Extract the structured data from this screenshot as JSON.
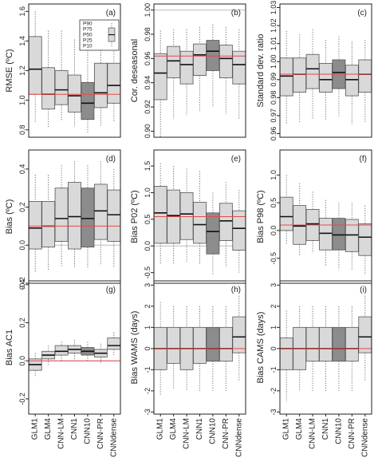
{
  "models": [
    "GLM1",
    "GLM4",
    "CNN-LM",
    "CNN1",
    "CNN10",
    "CNN-PR",
    "CNNdense"
  ],
  "box_fill": "#d9d9d9",
  "highlight_fill": "#8c8c8c",
  "ref_line_color": "#e8494a",
  "zero_line_color": "#bdbdbd",
  "legend_labels": [
    "P90",
    "P75",
    "P50",
    "P25",
    "P10"
  ],
  "chart_data": [
    {
      "type": "boxplot",
      "panel": "(a)",
      "ylabel": "RMSE (ºC)",
      "ylim": [
        0.75,
        1.65
      ],
      "yticks": [
        0.8,
        1.0,
        1.2,
        1.4,
        1.6
      ],
      "ytick_labels": [
        "0.8",
        "1.0",
        "1.2",
        "1.4",
        "1.6"
      ],
      "reference_line": 1.04,
      "highlight": "CNN10",
      "legend": "top-right",
      "boxes": [
        {
          "p10": 0.85,
          "p25": 1.04,
          "p50": 1.21,
          "p75": 1.43,
          "p90": 1.6
        },
        {
          "p10": 0.82,
          "p25": 0.94,
          "p50": 1.04,
          "p75": 1.22,
          "p90": 1.47
        },
        {
          "p10": 0.86,
          "p25": 0.97,
          "p50": 1.07,
          "p75": 1.2,
          "p90": 1.47
        },
        {
          "p10": 0.82,
          "p25": 0.92,
          "p50": 1.03,
          "p75": 1.17,
          "p90": 1.41
        },
        {
          "p10": 0.78,
          "p25": 0.87,
          "p50": 0.98,
          "p75": 1.12,
          "p90": 1.34
        },
        {
          "p10": 0.83,
          "p25": 0.95,
          "p50": 1.05,
          "p75": 1.25,
          "p90": 1.42
        },
        {
          "p10": 0.85,
          "p25": 0.98,
          "p50": 1.1,
          "p75": 1.25,
          "p90": 1.46
        }
      ]
    },
    {
      "type": "boxplot",
      "panel": "(b)",
      "ylabel": "Cor. deseasonal",
      "ylim": [
        0.895,
        1.005
      ],
      "yticks": [
        0.9,
        0.92,
        0.94,
        0.96,
        0.98,
        1.0
      ],
      "ytick_labels": [
        "0.90",
        "0.92",
        "0.94",
        "0.96",
        "0.98",
        "1.00"
      ],
      "reference_line": 0.962,
      "highlight": "CNN10",
      "top_line": 1.0,
      "boxes": [
        {
          "p10": 0.895,
          "p25": 0.926,
          "p50": 0.948,
          "p75": 0.964,
          "p90": 0.983
        },
        {
          "p10": 0.91,
          "p25": 0.944,
          "p50": 0.958,
          "p75": 0.97,
          "p90": 0.984
        },
        {
          "p10": 0.913,
          "p25": 0.939,
          "p50": 0.955,
          "p75": 0.966,
          "p90": 0.984
        },
        {
          "p10": 0.916,
          "p25": 0.946,
          "p50": 0.963,
          "p75": 0.972,
          "p90": 0.986
        },
        {
          "p10": 0.92,
          "p25": 0.95,
          "p50": 0.966,
          "p75": 0.975,
          "p90": 0.988
        },
        {
          "p10": 0.914,
          "p25": 0.944,
          "p50": 0.96,
          "p75": 0.971,
          "p90": 0.986
        },
        {
          "p10": 0.91,
          "p25": 0.939,
          "p50": 0.955,
          "p75": 0.966,
          "p90": 0.984
        }
      ]
    },
    {
      "type": "boxplot",
      "panel": "(c)",
      "ylabel": "Standard dev. ratio",
      "ylim": [
        0.958,
        1.032
      ],
      "yticks": [
        0.96,
        0.97,
        0.98,
        0.99,
        1.0,
        1.01,
        1.02,
        1.03
      ],
      "ytick_labels": [
        "0.96",
        "0.97",
        "0.98",
        "0.99",
        "1.00",
        "1.01",
        "1.02",
        "1.03"
      ],
      "reference_line": 0.993,
      "highlight": "CNN10",
      "boxes": [
        {
          "p10": 0.965,
          "p25": 0.981,
          "p50": 0.992,
          "p75": 1.002,
          "p90": 1.017
        },
        {
          "p10": 0.966,
          "p25": 0.983,
          "p50": 0.993,
          "p75": 1.002,
          "p90": 1.015
        },
        {
          "p10": 0.968,
          "p25": 0.985,
          "p50": 0.996,
          "p75": 1.004,
          "p90": 1.018
        },
        {
          "p10": 0.967,
          "p25": 0.983,
          "p50": 0.99,
          "p75": 0.999,
          "p90": 1.012
        },
        {
          "p10": 0.969,
          "p25": 0.985,
          "p50": 0.994,
          "p75": 1.001,
          "p90": 1.014
        },
        {
          "p10": 0.965,
          "p25": 0.981,
          "p50": 0.99,
          "p75": 0.998,
          "p90": 1.011
        },
        {
          "p10": 0.966,
          "p25": 0.983,
          "p50": 0.993,
          "p75": 1.001,
          "p90": 1.012
        }
      ]
    },
    {
      "type": "boxplot",
      "panel": "(d)",
      "ylabel": "Bias (ºC)",
      "ylim": [
        -0.2,
        0.5
      ],
      "yticks": [
        -0.2,
        0.0,
        0.2,
        0.4
      ],
      "ytick_labels": [
        "-0.2",
        "0.0",
        "0.2",
        "0.4"
      ],
      "reference_line": 0.1,
      "highlight": "CNN10",
      "zero_line": 0.0,
      "boxes": [
        {
          "p10": -0.14,
          "p25": -0.02,
          "p50": 0.09,
          "p75": 0.23,
          "p90": 0.37
        },
        {
          "p10": -0.13,
          "p25": -0.01,
          "p50": 0.1,
          "p75": 0.23,
          "p90": 0.37
        },
        {
          "p10": -0.11,
          "p25": 0.02,
          "p50": 0.14,
          "p75": 0.3,
          "p90": 0.42
        },
        {
          "p10": -0.12,
          "p25": -0.02,
          "p50": 0.15,
          "p75": 0.33,
          "p90": 0.44
        },
        {
          "p10": -0.12,
          "p25": -0.01,
          "p50": 0.14,
          "p75": 0.3,
          "p90": 0.42
        },
        {
          "p10": -0.1,
          "p25": 0.03,
          "p50": 0.18,
          "p75": 0.32,
          "p90": 0.44
        },
        {
          "p10": -0.12,
          "p25": 0.02,
          "p50": 0.16,
          "p75": 0.29,
          "p90": 0.4
        }
      ]
    },
    {
      "type": "boxplot",
      "panel": "(e)",
      "ylabel": "Bias P02 (ºC)",
      "ylim": [
        -0.7,
        1.8
      ],
      "yticks": [
        -0.5,
        0.0,
        0.5,
        1.0,
        1.5
      ],
      "ytick_labels": [
        "-0.5",
        "0.0",
        "0.5",
        "1.0",
        "1.5"
      ],
      "reference_line": 0.55,
      "highlight": "CNN10",
      "zero_line": 0.0,
      "boxes": [
        {
          "p10": -0.35,
          "p25": 0.05,
          "p50": 0.62,
          "p75": 1.12,
          "p90": 1.55
        },
        {
          "p10": -0.35,
          "p25": 0.05,
          "p50": 0.57,
          "p75": 1.05,
          "p90": 1.5
        },
        {
          "p10": -0.3,
          "p25": 0.12,
          "p50": 0.6,
          "p75": 1.0,
          "p90": 1.45
        },
        {
          "p10": -0.35,
          "p25": 0.05,
          "p50": 0.4,
          "p75": 0.82,
          "p90": 1.4
        },
        {
          "p10": -0.55,
          "p25": -0.15,
          "p50": 0.27,
          "p75": 0.62,
          "p90": 1.0
        },
        {
          "p10": -0.4,
          "p25": 0.1,
          "p50": 0.47,
          "p75": 0.8,
          "p90": 1.2
        },
        {
          "p10": -0.5,
          "p25": -0.08,
          "p50": 0.33,
          "p75": 0.66,
          "p90": 1.05
        }
      ]
    },
    {
      "type": "boxplot",
      "panel": "(f)",
      "ylabel": "Bias P98 (ºC)",
      "ylim": [
        -0.95,
        1.45
      ],
      "yticks": [
        -0.5,
        0.0,
        0.5,
        1.0
      ],
      "ytick_labels": [
        "-0.5",
        "0.0",
        "0.5",
        "1.0"
      ],
      "reference_line": 0.1,
      "highlight": "CNN10",
      "zero_line": 0.0,
      "boxes": [
        {
          "p10": -0.25,
          "p25": 0.0,
          "p50": 0.25,
          "p75": 0.6,
          "p90": 1.0
        },
        {
          "p10": -0.45,
          "p25": -0.25,
          "p50": 0.08,
          "p75": 0.45,
          "p90": 0.85
        },
        {
          "p10": -0.4,
          "p25": -0.18,
          "p50": 0.12,
          "p75": 0.38,
          "p90": 0.7
        },
        {
          "p10": -0.65,
          "p25": -0.35,
          "p50": -0.05,
          "p75": 0.22,
          "p90": 0.55
        },
        {
          "p10": -0.7,
          "p25": -0.35,
          "p50": -0.08,
          "p75": 0.22,
          "p90": 0.5
        },
        {
          "p10": -0.7,
          "p25": -0.38,
          "p50": -0.08,
          "p75": 0.2,
          "p90": 0.5
        },
        {
          "p10": -0.8,
          "p25": -0.45,
          "p50": -0.12,
          "p75": 0.12,
          "p90": 0.45
        }
      ]
    },
    {
      "type": "boxplot",
      "panel": "(g)",
      "ylabel": "Bias AC1",
      "ylim": [
        -0.28,
        0.42
      ],
      "yticks": [
        -0.2,
        0.0,
        0.2,
        0.4
      ],
      "ytick_labels": [
        "-0.2",
        "0.0",
        "0.2",
        "0.4"
      ],
      "reference_line": 0.0,
      "highlight": "CNN10",
      "zero_line": 0.0,
      "boxes": [
        {
          "p10": -0.08,
          "p25": -0.05,
          "p50": -0.02,
          "p75": 0.01,
          "p90": 0.04
        },
        {
          "p10": -0.02,
          "p25": 0.01,
          "p50": 0.03,
          "p75": 0.05,
          "p90": 0.08
        },
        {
          "p10": 0.0,
          "p25": 0.03,
          "p50": 0.05,
          "p75": 0.08,
          "p90": 0.1
        },
        {
          "p10": 0.01,
          "p25": 0.04,
          "p50": 0.06,
          "p75": 0.08,
          "p90": 0.11
        },
        {
          "p10": 0.0,
          "p25": 0.03,
          "p50": 0.05,
          "p75": 0.07,
          "p90": 0.1
        },
        {
          "p10": -0.01,
          "p25": 0.02,
          "p50": 0.04,
          "p75": 0.06,
          "p90": 0.09
        },
        {
          "p10": 0.03,
          "p25": 0.06,
          "p50": 0.08,
          "p75": 0.12,
          "p90": 0.15
        }
      ]
    },
    {
      "type": "boxplot",
      "panel": "(h)",
      "ylabel": "Bias WAMS (days)",
      "ylim": [
        -3.1,
        3.2
      ],
      "yticks": [
        -3,
        -2,
        -1,
        0,
        1,
        2,
        3
      ],
      "ytick_labels": [
        "-3",
        "-2",
        "-1",
        "0",
        "1",
        "2",
        "3"
      ],
      "reference_line": 0.0,
      "highlight": "CNN10",
      "boxes": [
        {
          "p10": -2.2,
          "p25": -1.0,
          "p50": 0.0,
          "p75": 1.0,
          "p90": 2.2
        },
        {
          "p10": -1.9,
          "p25": -0.7,
          "p50": 0.0,
          "p75": 1.0,
          "p90": 2.0
        },
        {
          "p10": -2.0,
          "p25": -1.0,
          "p50": 0.0,
          "p75": 1.0,
          "p90": 2.0
        },
        {
          "p10": -2.0,
          "p25": -0.7,
          "p50": 0.0,
          "p75": 1.0,
          "p90": 2.0
        },
        {
          "p10": -2.0,
          "p25": -0.6,
          "p50": 0.0,
          "p75": 1.0,
          "p90": 2.0
        },
        {
          "p10": -2.0,
          "p25": -0.6,
          "p50": 0.0,
          "p75": 1.0,
          "p90": 2.0
        },
        {
          "p10": -1.5,
          "p25": -0.2,
          "p50": 0.55,
          "p75": 1.5,
          "p90": 2.5
        }
      ]
    },
    {
      "type": "boxplot",
      "panel": "(i)",
      "ylabel": "Bias CAMS (days)",
      "ylim": [
        -3.1,
        3.2
      ],
      "yticks": [
        -3,
        -2,
        -1,
        0,
        1,
        2,
        3
      ],
      "ytick_labels": [
        "-3",
        "-2",
        "-1",
        "0",
        "1",
        "2",
        "3"
      ],
      "reference_line": 0.0,
      "highlight": "CNN10",
      "boxes": [
        {
          "p10": -2.5,
          "p25": -1.0,
          "p50": 0.0,
          "p75": 0.5,
          "p90": 1.8
        },
        {
          "p10": -2.0,
          "p25": -1.0,
          "p50": 0.0,
          "p75": 1.0,
          "p90": 2.0
        },
        {
          "p10": -2.0,
          "p25": -0.6,
          "p50": 0.0,
          "p75": 1.0,
          "p90": 2.0
        },
        {
          "p10": -2.0,
          "p25": -0.6,
          "p50": 0.0,
          "p75": 1.0,
          "p90": 2.0
        },
        {
          "p10": -2.0,
          "p25": -0.6,
          "p50": 0.0,
          "p75": 1.0,
          "p90": 2.0
        },
        {
          "p10": -2.0,
          "p25": -0.6,
          "p50": 0.0,
          "p75": 1.0,
          "p90": 2.0
        },
        {
          "p10": -1.5,
          "p25": -0.2,
          "p50": 0.55,
          "p75": 1.5,
          "p90": 2.5
        }
      ]
    }
  ]
}
